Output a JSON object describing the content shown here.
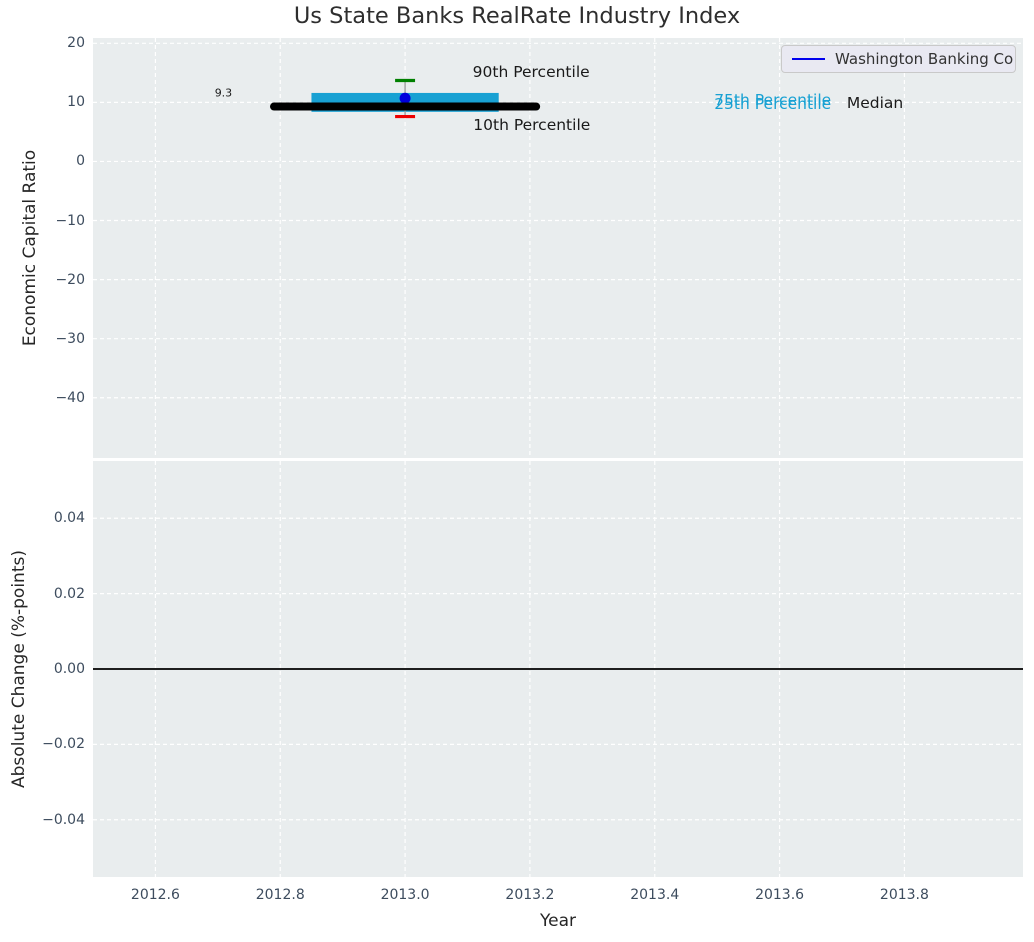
{
  "title": "Us State Banks RealRate Industry Index",
  "legend": {
    "label": "Washington Banking Co",
    "line_color": "#0000ee"
  },
  "colors": {
    "figure_bg": "#ffffff",
    "plot_bg": "#e9edee",
    "grid": "#ffffff",
    "tick_label": "#3d4c5e",
    "text": "#262626",
    "box_fill": "#18a1d3",
    "median_line": "#000000",
    "whisker": "#999999",
    "p90_cap": "#008000",
    "p10_cap": "#ee0000",
    "company_dot": "#0000dd",
    "zero_line": "#000000"
  },
  "chart_data": [
    {
      "type": "box-timeline",
      "title": "Us State Banks RealRate Industry Index",
      "ylabel": "Economic Capital Ratio",
      "xlabel": "",
      "grid": true,
      "legend_position": "upper right",
      "xlim": [
        2012.5,
        2013.99
      ],
      "ylim": [
        -50.2,
        20.9
      ],
      "xticks": [
        2012.6,
        2012.8,
        2013.0,
        2013.2,
        2013.4,
        2013.6,
        2013.8
      ],
      "yticks": [
        20,
        10,
        0,
        -10,
        -20,
        -30,
        -40
      ],
      "ytick_labels": [
        "20",
        "10",
        "0",
        "−10",
        "−20",
        "−30",
        "−40"
      ],
      "series": [
        {
          "name": "Washington Banking Co",
          "x": 2013.0,
          "company_value": 10.7,
          "median": 9.3,
          "p25": 8.4,
          "p75": 11.6,
          "p10": 7.6,
          "p90": 13.7,
          "box_span": [
            2012.85,
            2013.15
          ],
          "median_span": [
            2012.79,
            2013.21
          ],
          "cap_halfwidth_years": 0.016
        }
      ],
      "annotations": [
        {
          "text": "9.3",
          "x": 2012.709,
          "y": 11.6,
          "color": "#1a1a1a",
          "size": 11
        },
        {
          "text": "90th Percentile",
          "x": 2013.202,
          "y": 15.2,
          "color": "#1a1a1a",
          "size": 15.5
        },
        {
          "text": "10th Percentile",
          "x": 2013.203,
          "y": 6.1,
          "color": "#1a1a1a",
          "size": 15.5
        },
        {
          "text": "75th Percentile",
          "x": 2013.589,
          "y": 10.35,
          "color": "#18a1d3",
          "size": 15.5
        },
        {
          "text": "25th Percentile",
          "x": 2013.589,
          "y": 9.8,
          "color": "#18a1d3",
          "size": 15.5
        },
        {
          "text": "Median",
          "x": 2013.753,
          "y": 9.9,
          "color": "#1a1a1a",
          "size": 15.5
        }
      ]
    },
    {
      "type": "line",
      "ylabel": "Absolute Change (%-points)",
      "xlabel": "Year",
      "grid": true,
      "xlim": [
        2012.5,
        2013.99
      ],
      "ylim": [
        -0.0552,
        0.0552
      ],
      "xticks": [
        2012.6,
        2012.8,
        2013.0,
        2013.2,
        2013.4,
        2013.6,
        2013.8
      ],
      "xtick_labels": [
        "2012.6",
        "2012.8",
        "2013.0",
        "2013.2",
        "2013.4",
        "2013.6",
        "2013.8"
      ],
      "yticks": [
        0.04,
        0.02,
        0.0,
        -0.02,
        -0.04
      ],
      "ytick_labels": [
        "0.04",
        "0.02",
        "0.00",
        "−0.02",
        "−0.04"
      ],
      "zero_line_y": 0.0,
      "annotations": []
    }
  ]
}
